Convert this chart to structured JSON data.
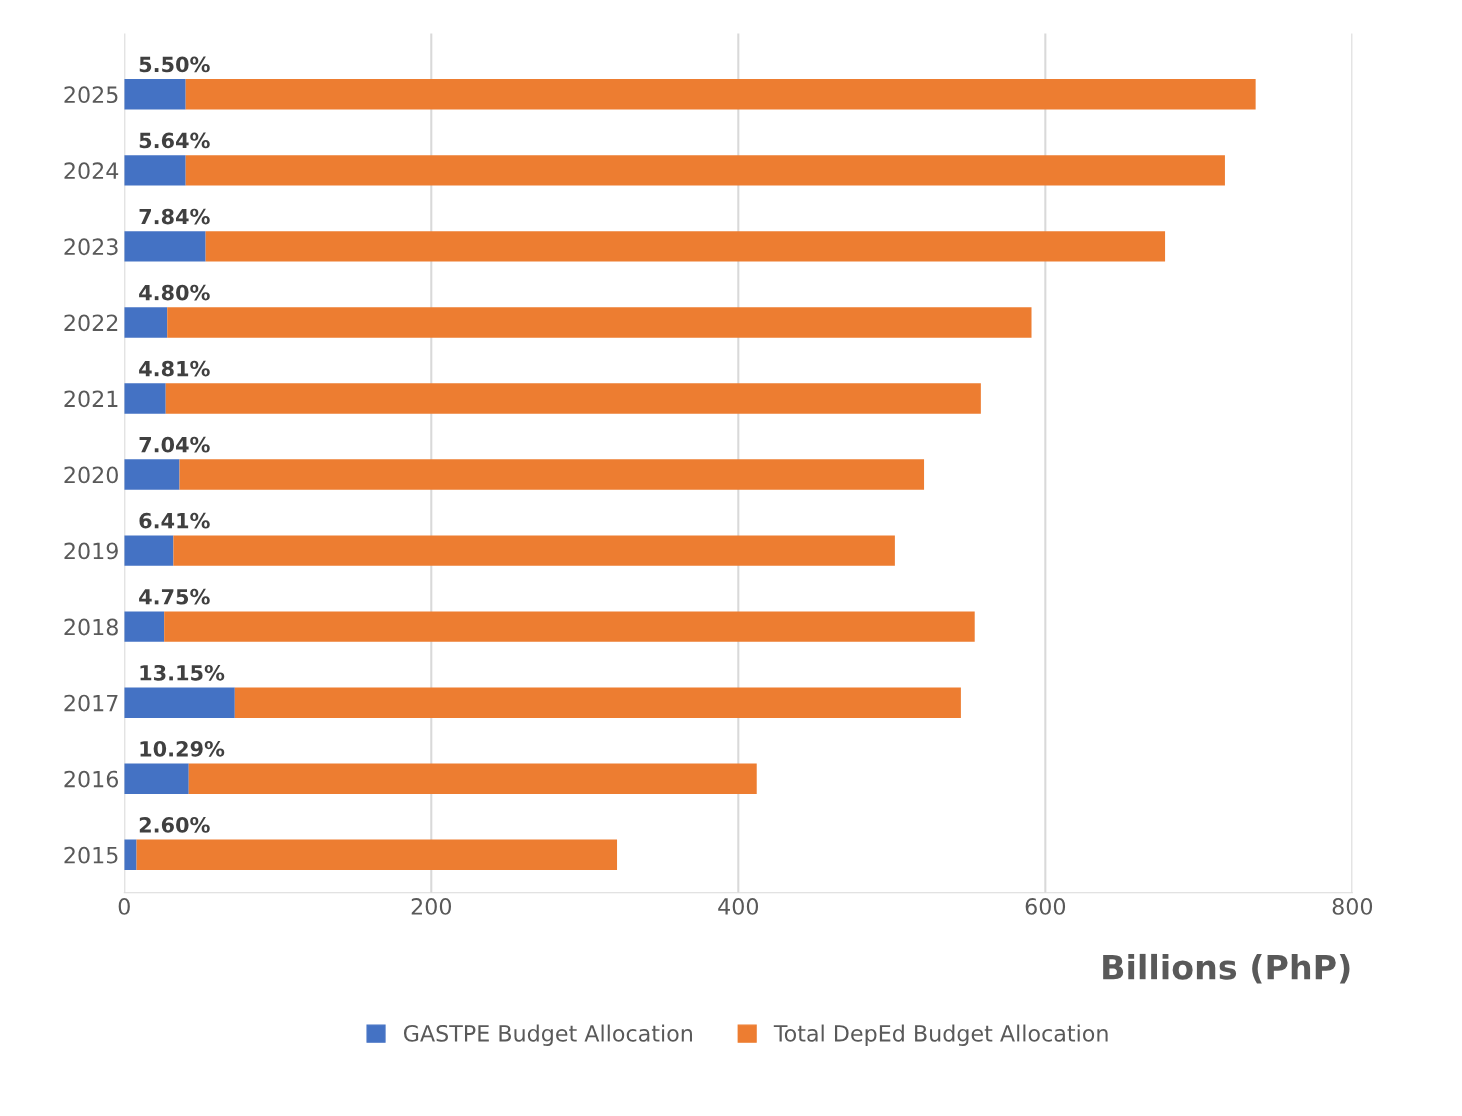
{
  "chart_data": {
    "type": "bar",
    "orientation": "horizontal",
    "stacked": true,
    "categories": [
      "2025",
      "2024",
      "2023",
      "2022",
      "2021",
      "2020",
      "2019",
      "2018",
      "2017",
      "2016",
      "2015"
    ],
    "series": [
      {
        "name": "GASTPE Budget Allocation",
        "color": "#4472c4",
        "values": [
          40,
          40,
          53,
          28,
          27,
          36,
          32,
          26,
          72,
          42,
          8
        ]
      },
      {
        "name": "Total DepEd Budget Allocation",
        "color": "#ed7d31",
        "values": [
          697,
          677,
          625,
          563,
          531,
          485,
          470,
          528,
          473,
          370,
          313
        ]
      }
    ],
    "annotations": [
      "5.50%",
      "5.64%",
      "7.84%",
      "4.80%",
      "4.81%",
      "7.04%",
      "6.41%",
      "4.75%",
      "13.15%",
      "10.29%",
      "2.60%"
    ],
    "xlabel": "Billions (PhP)",
    "xlim": [
      0,
      800
    ],
    "xticks": [
      0,
      200,
      400,
      600,
      800
    ],
    "grid": "x",
    "legend": "bottom"
  }
}
